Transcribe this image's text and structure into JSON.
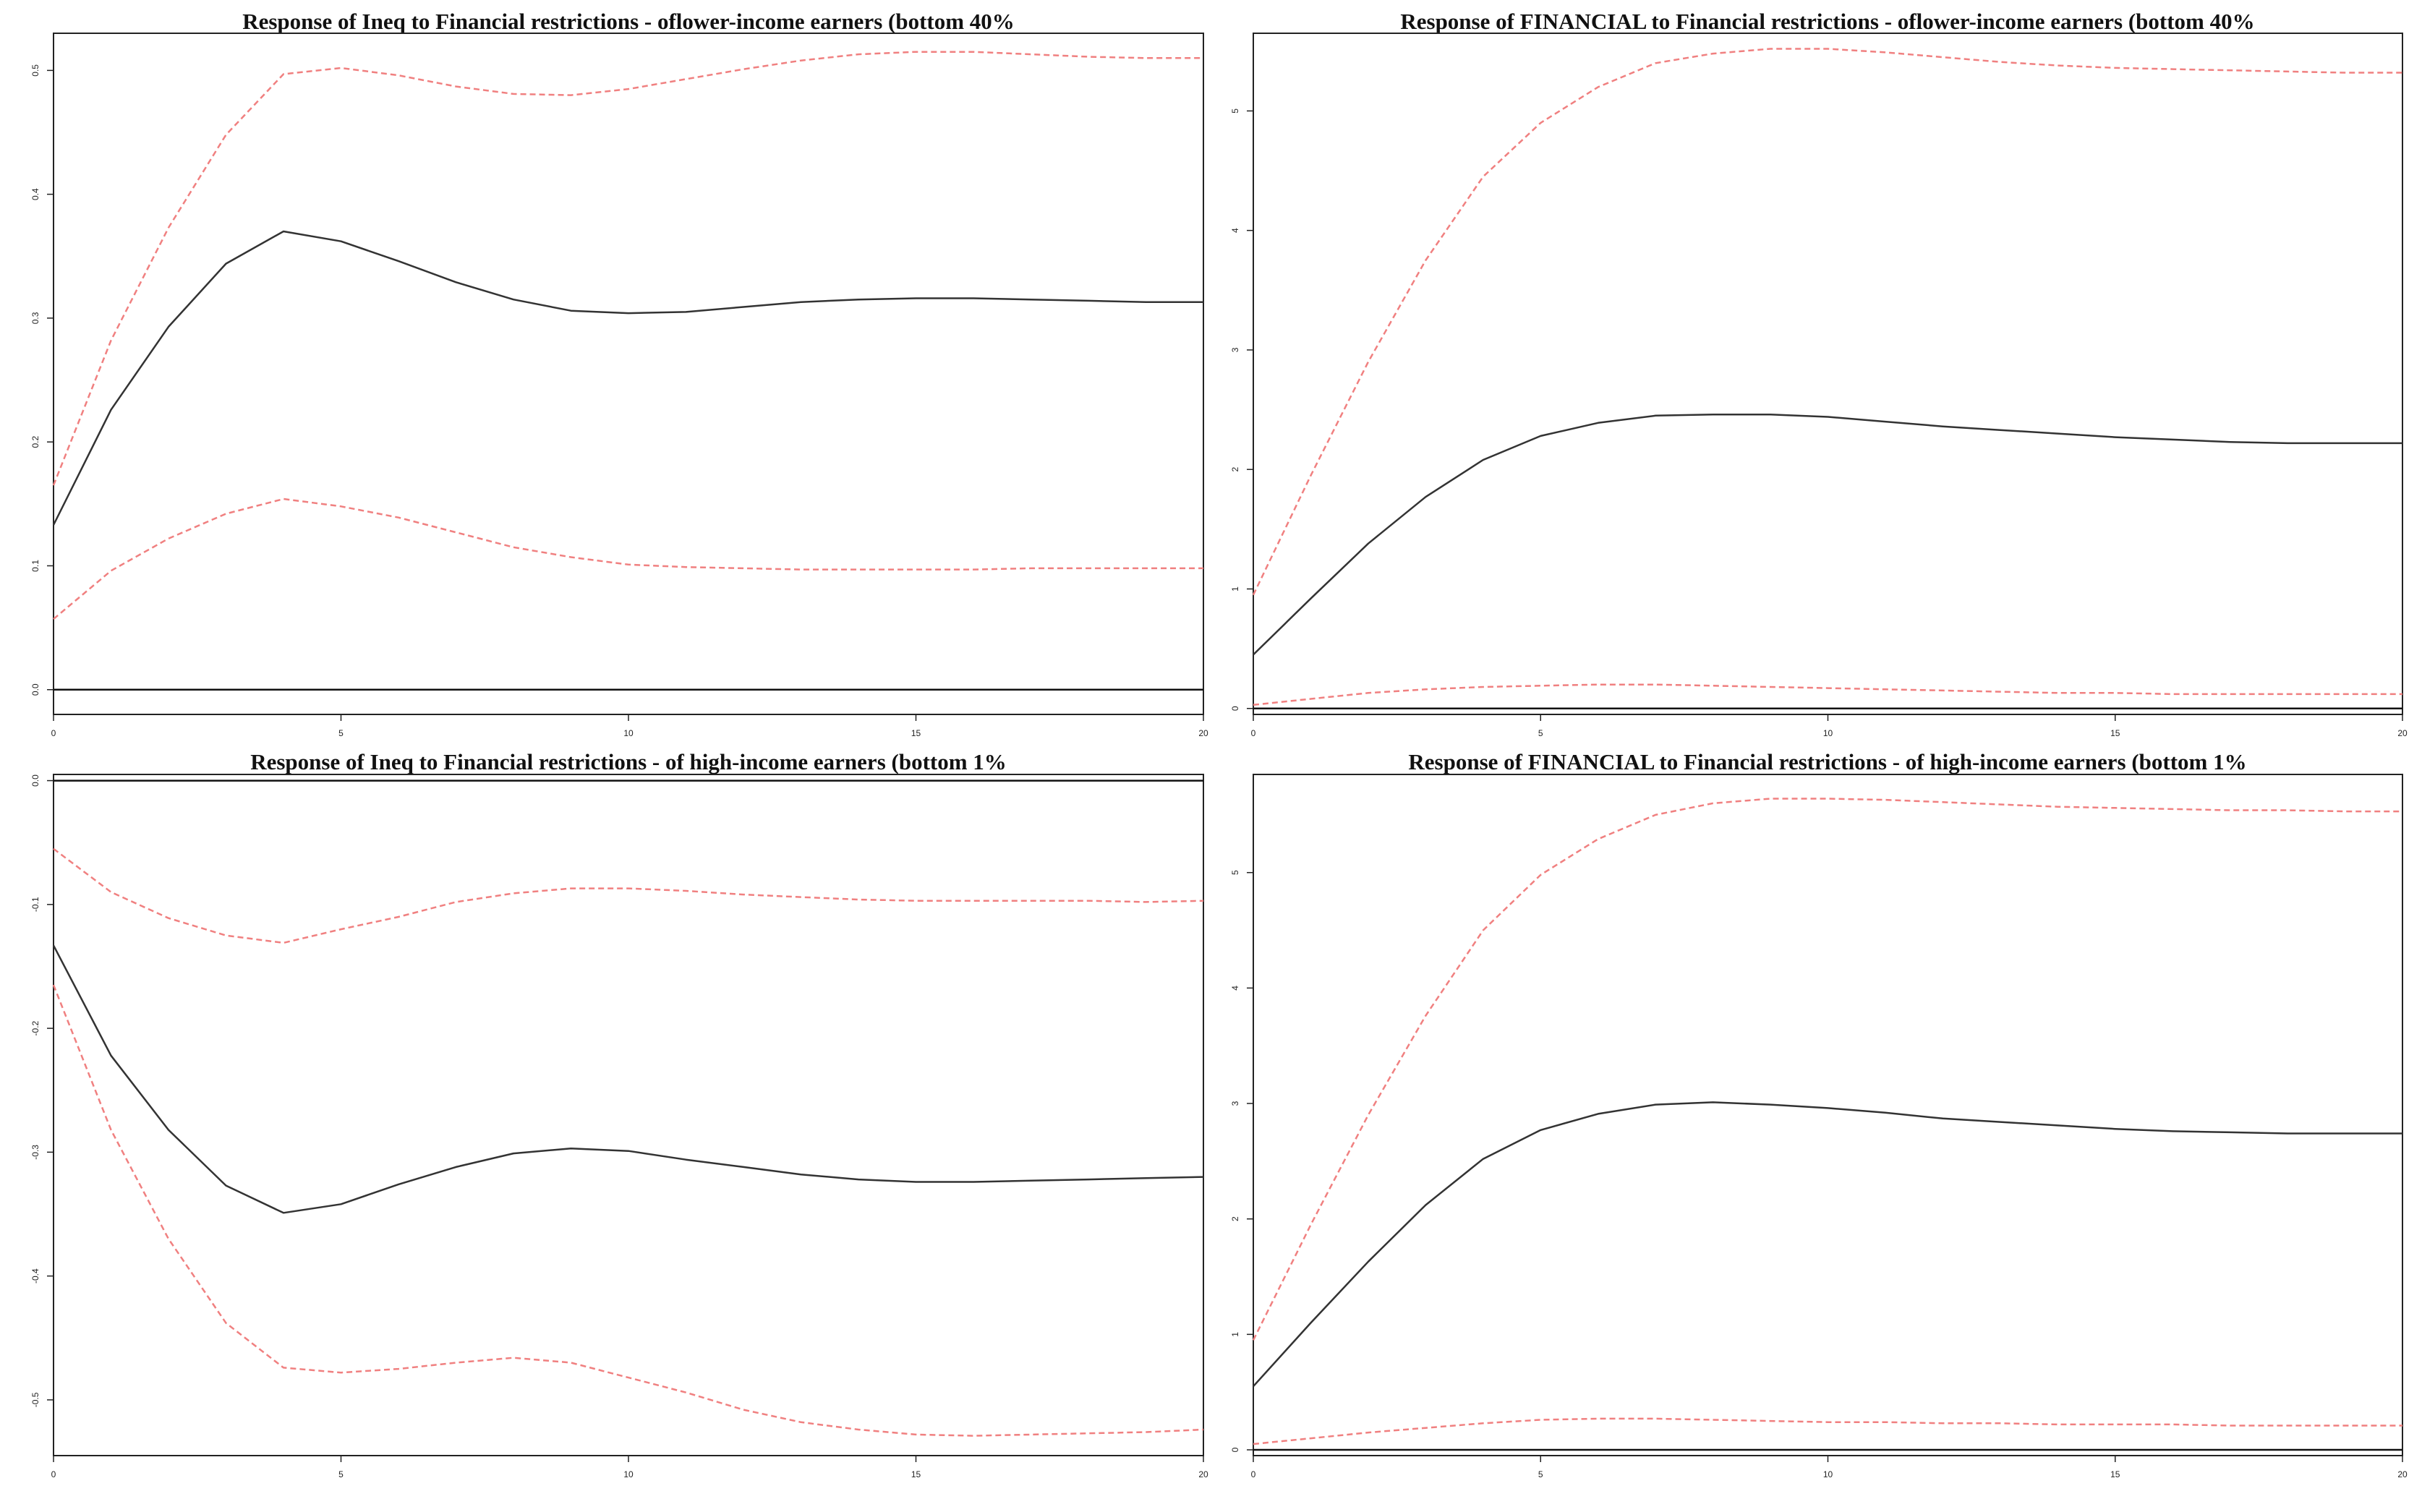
{
  "chart_data": [
    {
      "type": "line",
      "title": "Response of Ineq to Financial restrictions - oflower-income earners (bottom 40%",
      "xlabel": "",
      "ylabel": "",
      "xlim": [
        0,
        20
      ],
      "ylim": [
        -0.02,
        0.53
      ],
      "xticks": [
        0,
        5,
        10,
        15,
        20
      ],
      "yticks": [
        0.0,
        0.1,
        0.2,
        0.3,
        0.4,
        0.5
      ],
      "ytick_labels": [
        "0.0",
        "0.1",
        "0.2",
        "0.3",
        "0.4",
        "0.5"
      ],
      "grid": false,
      "zero_line": true,
      "x": [
        0,
        1,
        2,
        3,
        4,
        5,
        6,
        7,
        8,
        9,
        10,
        11,
        12,
        13,
        14,
        15,
        16,
        17,
        18,
        19,
        20
      ],
      "series": [
        {
          "role": "irf",
          "color": "#333333",
          "values": [
            0.133,
            0.226,
            0.293,
            0.344,
            0.37,
            0.362,
            0.346,
            0.329,
            0.315,
            0.306,
            0.304,
            0.305,
            0.309,
            0.313,
            0.315,
            0.316,
            0.316,
            0.315,
            0.314,
            0.313,
            0.313
          ]
        },
        {
          "role": "upper",
          "color": "#f08080",
          "values": [
            0.165,
            0.282,
            0.373,
            0.448,
            0.497,
            0.502,
            0.496,
            0.487,
            0.481,
            0.48,
            0.485,
            0.493,
            0.501,
            0.508,
            0.513,
            0.515,
            0.515,
            0.513,
            0.511,
            0.51,
            0.51
          ]
        },
        {
          "role": "lower",
          "color": "#f08080",
          "values": [
            0.057,
            0.096,
            0.122,
            0.142,
            0.154,
            0.148,
            0.139,
            0.127,
            0.115,
            0.107,
            0.101,
            0.099,
            0.098,
            0.097,
            0.097,
            0.097,
            0.097,
            0.098,
            0.098,
            0.098,
            0.098
          ]
        }
      ]
    },
    {
      "type": "line",
      "title": "Response of FINANCIAL to Financial restrictions - oflower-income earners (bottom 40%",
      "xlabel": "",
      "ylabel": "",
      "xlim": [
        0,
        20
      ],
      "ylim": [
        -0.05,
        5.65
      ],
      "xticks": [
        0,
        5,
        10,
        15,
        20
      ],
      "yticks": [
        0,
        1,
        2,
        3,
        4,
        5
      ],
      "ytick_labels": [
        "0",
        "1",
        "2",
        "3",
        "4",
        "5"
      ],
      "grid": false,
      "zero_line": true,
      "x": [
        0,
        1,
        2,
        3,
        4,
        5,
        6,
        7,
        8,
        9,
        10,
        11,
        12,
        13,
        14,
        15,
        16,
        17,
        18,
        19,
        20
      ],
      "series": [
        {
          "role": "irf",
          "color": "#333333",
          "values": [
            0.45,
            0.92,
            1.38,
            1.77,
            2.08,
            2.28,
            2.39,
            2.45,
            2.46,
            2.46,
            2.44,
            2.4,
            2.36,
            2.33,
            2.3,
            2.27,
            2.25,
            2.23,
            2.22,
            2.22,
            2.22
          ]
        },
        {
          "role": "upper",
          "color": "#f08080",
          "values": [
            0.95,
            1.95,
            2.9,
            3.75,
            4.45,
            4.9,
            5.2,
            5.4,
            5.48,
            5.52,
            5.52,
            5.49,
            5.45,
            5.41,
            5.38,
            5.36,
            5.35,
            5.34,
            5.33,
            5.32,
            5.32
          ]
        },
        {
          "role": "lower",
          "color": "#f08080",
          "values": [
            0.03,
            0.08,
            0.13,
            0.16,
            0.18,
            0.19,
            0.2,
            0.2,
            0.19,
            0.18,
            0.17,
            0.16,
            0.15,
            0.14,
            0.13,
            0.13,
            0.12,
            0.12,
            0.12,
            0.12,
            0.12
          ]
        }
      ]
    },
    {
      "type": "line",
      "title": "Response of Ineq to Financial restrictions - of high-income earners (bottom 1%",
      "xlabel": "",
      "ylabel": "",
      "xlim": [
        0,
        20
      ],
      "ylim": [
        -0.545,
        0.005
      ],
      "xticks": [
        0,
        5,
        10,
        15,
        20
      ],
      "yticks": [
        0.0,
        -0.1,
        -0.2,
        -0.3,
        -0.4,
        -0.5
      ],
      "ytick_labels": [
        "0.0",
        "-0.1",
        "-0.2",
        "-0.3",
        "-0.4",
        "-0.5"
      ],
      "grid": false,
      "zero_line": true,
      "x": [
        0,
        1,
        2,
        3,
        4,
        5,
        6,
        7,
        8,
        9,
        10,
        11,
        12,
        13,
        14,
        15,
        16,
        17,
        18,
        19,
        20
      ],
      "series": [
        {
          "role": "irf",
          "color": "#333333",
          "values": [
            -0.133,
            -0.222,
            -0.282,
            -0.327,
            -0.349,
            -0.342,
            -0.326,
            -0.312,
            -0.301,
            -0.297,
            -0.299,
            -0.306,
            -0.312,
            -0.318,
            -0.322,
            -0.324,
            -0.324,
            -0.323,
            -0.322,
            -0.321,
            -0.32
          ]
        },
        {
          "role": "upper",
          "color": "#f08080",
          "values": [
            -0.055,
            -0.09,
            -0.111,
            -0.125,
            -0.131,
            -0.12,
            -0.11,
            -0.098,
            -0.091,
            -0.087,
            -0.087,
            -0.089,
            -0.092,
            -0.094,
            -0.096,
            -0.097,
            -0.097,
            -0.097,
            -0.097,
            -0.098,
            -0.097
          ]
        },
        {
          "role": "lower",
          "color": "#f08080",
          "values": [
            -0.165,
            -0.282,
            -0.37,
            -0.438,
            -0.474,
            -0.478,
            -0.475,
            -0.47,
            -0.466,
            -0.47,
            -0.482,
            -0.494,
            -0.508,
            -0.518,
            -0.524,
            -0.528,
            -0.529,
            -0.528,
            -0.527,
            -0.526,
            -0.524
          ]
        }
      ]
    },
    {
      "type": "line",
      "title": "Response of FINANCIAL to Financial restrictions - of high-income earners (bottom 1%",
      "xlabel": "",
      "ylabel": "",
      "xlim": [
        0,
        20
      ],
      "ylim": [
        -0.05,
        5.85
      ],
      "xticks": [
        0,
        5,
        10,
        15,
        20
      ],
      "yticks": [
        0,
        1,
        2,
        3,
        4,
        5
      ],
      "ytick_labels": [
        "0",
        "1",
        "2",
        "3",
        "4",
        "5"
      ],
      "grid": false,
      "zero_line": true,
      "x": [
        0,
        1,
        2,
        3,
        4,
        5,
        6,
        7,
        8,
        9,
        10,
        11,
        12,
        13,
        14,
        15,
        16,
        17,
        18,
        19,
        20
      ],
      "series": [
        {
          "role": "irf",
          "color": "#333333",
          "values": [
            0.55,
            1.1,
            1.63,
            2.12,
            2.52,
            2.77,
            2.91,
            2.99,
            3.01,
            2.99,
            2.96,
            2.92,
            2.87,
            2.84,
            2.81,
            2.78,
            2.76,
            2.75,
            2.74,
            2.74,
            2.74
          ]
        },
        {
          "role": "upper",
          "color": "#f08080",
          "values": [
            0.95,
            1.95,
            2.9,
            3.76,
            4.5,
            4.98,
            5.29,
            5.5,
            5.6,
            5.64,
            5.64,
            5.63,
            5.61,
            5.59,
            5.57,
            5.56,
            5.55,
            5.54,
            5.54,
            5.53,
            5.53
          ]
        },
        {
          "role": "lower",
          "color": "#f08080",
          "values": [
            0.05,
            0.1,
            0.15,
            0.19,
            0.23,
            0.26,
            0.27,
            0.27,
            0.26,
            0.25,
            0.24,
            0.24,
            0.23,
            0.23,
            0.22,
            0.22,
            0.22,
            0.21,
            0.21,
            0.21,
            0.21
          ]
        }
      ]
    }
  ]
}
